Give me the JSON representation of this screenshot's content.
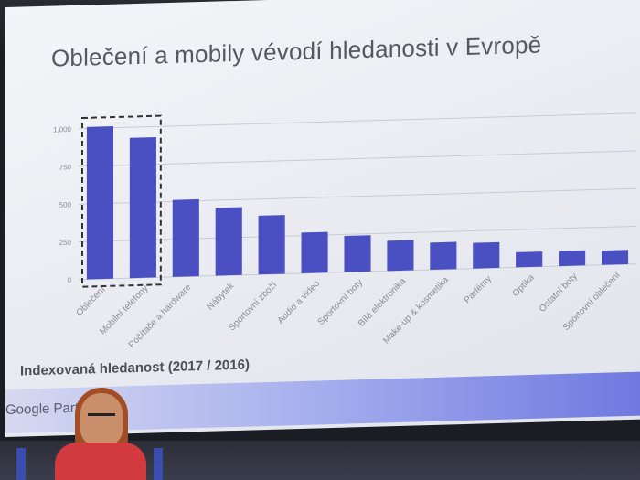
{
  "slide": {
    "title": "Oblečení a mobily vévodí hledanosti v Evropě",
    "footnote": "Indexovaná hledanost (2017 / 2016)",
    "brand": "Google Partners"
  },
  "colors": {
    "bar": "#4a4fc2",
    "grid": "#c8cbd4",
    "axis_text": "#8a8d94",
    "highlight_box": "#333333"
  },
  "chart_data": {
    "type": "bar",
    "title": "",
    "xlabel": "",
    "ylabel": "",
    "ylim": [
      0,
      1000
    ],
    "yticks": [
      0,
      250,
      500,
      750,
      1000
    ],
    "ytick_labels": [
      "0",
      "250",
      "500",
      "750",
      "1,000"
    ],
    "grid": true,
    "categories": [
      "Oblečení",
      "Mobilní telefony",
      "Počítače a hardware",
      "Nábytek",
      "Sportovní zboží",
      "Audio a video",
      "Sportovní boty",
      "Bílá elektronika",
      "Make-up & kosmetika",
      "Parfémy",
      "Optika",
      "Ostatní boty",
      "Sportovní oblečení"
    ],
    "values": [
      1010,
      930,
      510,
      450,
      390,
      270,
      240,
      200,
      180,
      170,
      100,
      100,
      95
    ],
    "highlight": [
      "Oblečení",
      "Mobilní telefony"
    ]
  }
}
